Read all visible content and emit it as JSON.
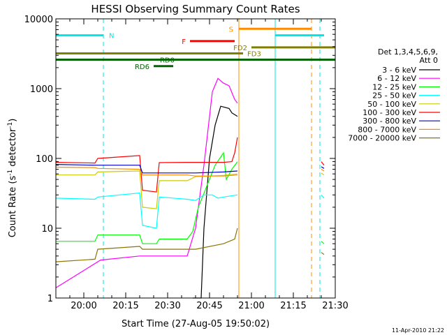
{
  "chart_data": {
    "type": "line",
    "title": "HESSI Observing Summary Count Rates",
    "xlabel": "Start Time (27-Aug-05 19:50:02)",
    "ylabel_main": "Count Rate (s",
    "ylabel_sup1": "-1",
    "ylabel_mid": " detector",
    "ylabel_sup2": "-1",
    "ylabel_end": ")",
    "ylog": true,
    "xlim_min": [
      0,
      100
    ],
    "ylim": [
      1,
      10000
    ],
    "x_ticks": [
      {
        "min": 10,
        "label": "20:00"
      },
      {
        "min": 25,
        "label": "20:15"
      },
      {
        "min": 40,
        "label": "20:30"
      },
      {
        "min": 55,
        "label": "20:45"
      },
      {
        "min": 70,
        "label": "21:00"
      },
      {
        "min": 85,
        "label": "21:15"
      },
      {
        "min": 100,
        "label": "21:30"
      }
    ],
    "y_ticks": [
      {
        "value": 1,
        "label": "1"
      },
      {
        "value": 10,
        "label": "10"
      },
      {
        "value": 100,
        "label": "100"
      },
      {
        "value": 1000,
        "label": "1000"
      },
      {
        "value": 10000,
        "label": "10000"
      }
    ],
    "legend_header": [
      "Det 1,3,4,5,6,9,",
      "Att 0"
    ],
    "series": [
      {
        "name": "3 - 6 keV",
        "color": "#000000",
        "points": [
          [
            49,
            1
          ],
          [
            52,
            1
          ],
          [
            53,
            10
          ],
          [
            55,
            100
          ],
          [
            57,
            300
          ],
          [
            59,
            560
          ],
          [
            62,
            520
          ],
          [
            63,
            450
          ],
          [
            65,
            400
          ]
        ]
      },
      {
        "name": "6 - 12 keV",
        "color": "#ff00ff",
        "points": [
          [
            0,
            1.4
          ],
          [
            16,
            3.5
          ],
          [
            30,
            4
          ],
          [
            40,
            4
          ],
          [
            47,
            4
          ],
          [
            50,
            10
          ],
          [
            53,
            80
          ],
          [
            55,
            400
          ],
          [
            56,
            900
          ],
          [
            58,
            1400
          ],
          [
            60,
            1200
          ],
          [
            62,
            1100
          ],
          [
            64,
            700
          ],
          [
            65,
            620
          ]
        ]
      },
      {
        "name": "12 - 25 keV",
        "color": "#00ff00",
        "points": [
          [
            0,
            6.5
          ],
          [
            14,
            6.5
          ],
          [
            15,
            8
          ],
          [
            30,
            8
          ],
          [
            31,
            6
          ],
          [
            36,
            6
          ],
          [
            37,
            7
          ],
          [
            47,
            7
          ],
          [
            49,
            9
          ],
          [
            51,
            20
          ],
          [
            54,
            40
          ],
          [
            57,
            80
          ],
          [
            60,
            120
          ],
          [
            61,
            50
          ],
          [
            63,
            70
          ],
          [
            65,
            90
          ]
        ]
      },
      {
        "name": "25 - 50 keV",
        "color": "#00ffff",
        "points": [
          [
            0,
            27
          ],
          [
            14,
            26
          ],
          [
            15,
            28
          ],
          [
            30,
            32
          ],
          [
            31,
            11
          ],
          [
            36,
            10
          ],
          [
            37,
            28
          ],
          [
            47,
            26
          ],
          [
            50,
            25
          ],
          [
            53,
            30
          ],
          [
            56,
            30
          ],
          [
            58,
            27
          ],
          [
            60,
            28
          ],
          [
            65,
            30
          ]
        ]
      },
      {
        "name": "50 - 100 keV",
        "color": "#cccc00",
        "points": [
          [
            0,
            58
          ],
          [
            14,
            58
          ],
          [
            15,
            64
          ],
          [
            30,
            66
          ],
          [
            31,
            20
          ],
          [
            36,
            19
          ],
          [
            37,
            48
          ],
          [
            47,
            48
          ],
          [
            50,
            55
          ],
          [
            60,
            57
          ],
          [
            65,
            60
          ]
        ]
      },
      {
        "name": "100 - 300 keV",
        "color": "#ff0000",
        "points": [
          [
            0,
            88
          ],
          [
            14,
            86
          ],
          [
            15,
            100
          ],
          [
            30,
            110
          ],
          [
            31,
            35
          ],
          [
            36,
            33
          ],
          [
            37,
            87
          ],
          [
            47,
            88
          ],
          [
            50,
            88
          ],
          [
            60,
            88
          ],
          [
            63,
            90
          ],
          [
            64,
            120
          ],
          [
            65,
            200
          ]
        ]
      },
      {
        "name": "300 - 800 keV",
        "color": "#0000cc",
        "points": [
          [
            0,
            82
          ],
          [
            14,
            80
          ],
          [
            15,
            80
          ],
          [
            30,
            80
          ],
          [
            31,
            62
          ],
          [
            47,
            62
          ],
          [
            50,
            62
          ],
          [
            60,
            64
          ],
          [
            65,
            66
          ]
        ]
      },
      {
        "name": "800 - 7000 keV",
        "color": "#ff8c00",
        "points": [
          [
            0,
            75
          ],
          [
            14,
            74
          ],
          [
            15,
            72
          ],
          [
            30,
            70
          ],
          [
            31,
            58
          ],
          [
            47,
            58
          ],
          [
            50,
            56
          ],
          [
            60,
            56
          ],
          [
            65,
            58
          ]
        ]
      },
      {
        "name": "7000 - 20000 keV",
        "color": "#8b7500",
        "points": [
          [
            0,
            3.3
          ],
          [
            14,
            3.6
          ],
          [
            15,
            5
          ],
          [
            30,
            5.5
          ],
          [
            31,
            5
          ],
          [
            47,
            5
          ],
          [
            50,
            5
          ],
          [
            60,
            6
          ],
          [
            64,
            7
          ],
          [
            65,
            10
          ]
        ]
      }
    ],
    "post_series": [
      {
        "color": "#ff0000",
        "points": [
          [
            95,
            90
          ],
          [
            96,
            80
          ]
        ]
      },
      {
        "color": "#0000cc",
        "points": [
          [
            95,
            76
          ],
          [
            96,
            72
          ]
        ]
      },
      {
        "color": "#ff8c00",
        "points": [
          [
            95,
            70
          ],
          [
            96,
            66
          ]
        ]
      },
      {
        "color": "#cccc00",
        "points": [
          [
            95,
            62
          ],
          [
            96,
            58
          ]
        ]
      },
      {
        "color": "#00ffff",
        "points": [
          [
            95,
            30
          ],
          [
            96,
            27
          ]
        ]
      },
      {
        "color": "#00ff00",
        "points": [
          [
            95,
            6.5
          ],
          [
            96,
            6
          ]
        ]
      },
      {
        "color": "#8b7500",
        "points": [
          [
            95,
            4.5
          ],
          [
            96,
            4.2
          ]
        ]
      }
    ],
    "vlines": [
      {
        "min": 17,
        "color": "#00e5e5",
        "dash": true
      },
      {
        "min": 65.5,
        "color": "#ff8c00",
        "dash": false
      },
      {
        "min": 78.5,
        "color": "#00e5e5",
        "dash": false
      },
      {
        "min": 91.5,
        "color": "#ff8c00",
        "dash": true
      },
      {
        "min": 94.5,
        "color": "#00e5e5",
        "dash": true
      }
    ],
    "annotations": [
      {
        "label": "N",
        "color": "#00e5e5",
        "y": 5800,
        "x0": 0,
        "x1": 17,
        "label_x": 19,
        "anchor": "start"
      },
      {
        "label": "N",
        "color": "#00e5e5",
        "y": 5800,
        "x0": 78.5,
        "x1": 96,
        "label_x": null,
        "anchor": "start"
      },
      {
        "label": "S",
        "color": "#ff8c00",
        "y": 7200,
        "x0": 65.5,
        "x1": 91.5,
        "label_x": 63.5,
        "anchor": "end"
      },
      {
        "label": "F",
        "color": "#ff0000",
        "y": 4800,
        "x0": 48,
        "x1": 64,
        "label_x": 46.5,
        "anchor": "end"
      },
      {
        "label": "FD2",
        "color": "#808000",
        "y": 3900,
        "x0": 70,
        "x1": 100,
        "label_x": 68.5,
        "anchor": "end"
      },
      {
        "label": "FD3",
        "color": "#808000",
        "y": 3200,
        "x0": 0,
        "x1": 67,
        "label_x": 68.5,
        "anchor": "start"
      },
      {
        "label": "RD0",
        "color": "#006400",
        "y": 2600,
        "x0": 0,
        "x1": 100,
        "label_x": 42.5,
        "anchor": "end"
      },
      {
        "label": "RD6",
        "color": "#006400",
        "y": 2100,
        "x0": 35,
        "x1": 42,
        "label_x": 33.5,
        "anchor": "end"
      }
    ],
    "grid": false,
    "legend_position": "right"
  },
  "footer": {
    "timestamp": "11-Apr-2010 21:22"
  }
}
